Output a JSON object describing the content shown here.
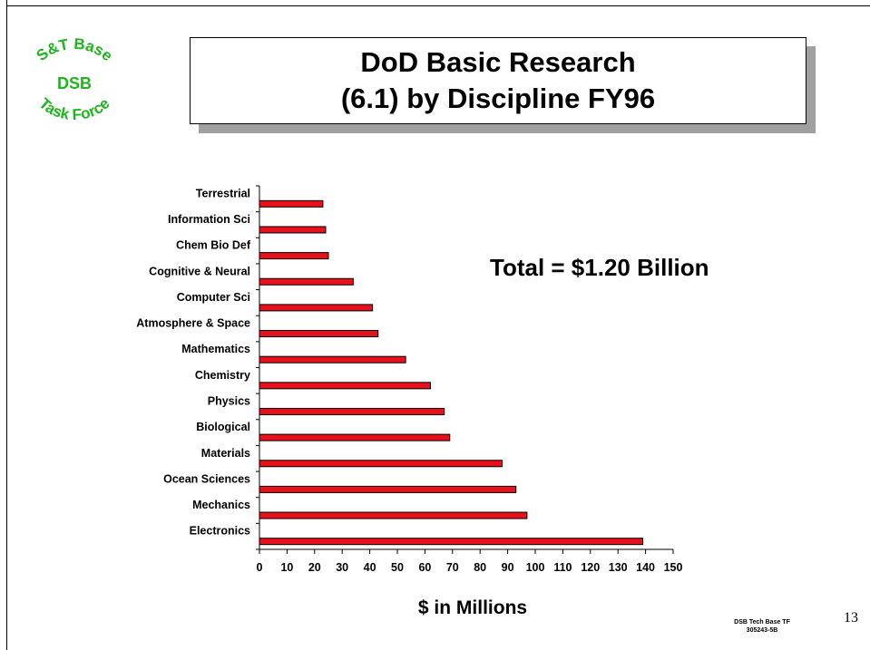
{
  "logo": {
    "lines": [
      "S&T Base",
      "DSB",
      "Task Force"
    ],
    "color": "#1fb51f"
  },
  "title": {
    "line1": "DoD Basic Research",
    "line2": "(6.1) by Discipline FY96"
  },
  "total_label": "Total = $1.20 Billion",
  "chart_data": {
    "type": "bar",
    "orientation": "horizontal",
    "categories": [
      "Terrestrial",
      "Information Sci",
      "Chem Bio Def",
      "Cognitive & Neural",
      "Computer Sci",
      "Atmosphere & Space",
      "Mathematics",
      "Chemistry",
      "Physics",
      "Biological",
      "Materials",
      "Ocean Sciences",
      "Mechanics",
      "Electronics"
    ],
    "values": [
      23,
      24,
      25,
      34,
      41,
      43,
      53,
      62,
      67,
      69,
      88,
      93,
      97,
      139
    ],
    "xlabel": "$ in Millions",
    "ylabel": "",
    "xlim": [
      0,
      150
    ],
    "xticks": [
      0,
      10,
      20,
      30,
      40,
      50,
      60,
      70,
      80,
      90,
      100,
      110,
      120,
      130,
      140,
      150
    ],
    "bar_color": "#e8101a",
    "grid": false,
    "legend": "none"
  },
  "footer": {
    "line1": "DSB Tech Base TF",
    "line2": "305243-5B"
  },
  "page_number": "13"
}
